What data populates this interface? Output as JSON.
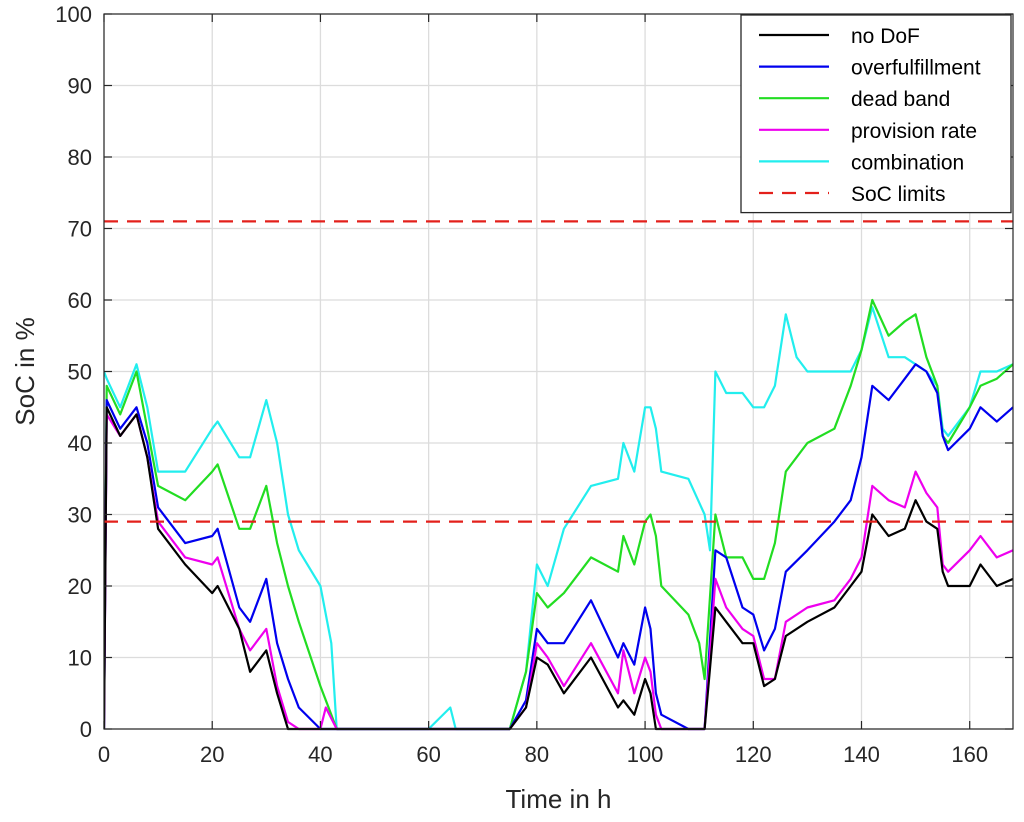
{
  "chart_data": {
    "type": "line",
    "title": "",
    "xlabel": "Time in h",
    "ylabel": "SoC in %",
    "xlim": [
      0,
      168
    ],
    "ylim": [
      0,
      100
    ],
    "xticks": [
      0,
      20,
      40,
      60,
      80,
      100,
      120,
      140,
      160
    ],
    "yticks": [
      0,
      10,
      20,
      30,
      40,
      50,
      60,
      70,
      80,
      90,
      100
    ],
    "grid": true,
    "legend": "top-right",
    "series": [
      {
        "name": "no DoF",
        "color": "#000000",
        "dashed": false,
        "x": [
          0,
          0.5,
          3,
          6,
          8,
          10,
          15,
          20,
          21,
          25,
          27,
          30,
          32,
          34,
          36,
          40,
          43,
          50,
          60,
          70,
          75,
          78,
          80,
          82,
          85,
          90,
          95,
          96,
          98,
          100,
          101,
          102,
          103,
          108,
          111,
          113,
          115,
          118,
          120,
          122,
          124,
          126,
          130,
          135,
          138,
          140,
          142,
          145,
          148,
          150,
          152,
          154,
          155,
          156,
          160,
          162,
          165,
          168
        ],
        "y": [
          0,
          45,
          41,
          44,
          38,
          28,
          23,
          19,
          20,
          14,
          8,
          11,
          5,
          0,
          0,
          0,
          0,
          0,
          0,
          0,
          0,
          3,
          10,
          9,
          5,
          10,
          3,
          4,
          2,
          7,
          5,
          0,
          0,
          0,
          0,
          17,
          15,
          12,
          12,
          6,
          7,
          13,
          15,
          17,
          20,
          22,
          30,
          27,
          28,
          32,
          29,
          28,
          22,
          20,
          20,
          23,
          20,
          21
        ]
      },
      {
        "name": "overfulfillment",
        "color": "#0000ee",
        "dashed": false,
        "x": [
          0,
          0.5,
          3,
          6,
          8,
          10,
          15,
          20,
          21,
          25,
          27,
          30,
          32,
          34,
          36,
          40,
          43,
          50,
          60,
          70,
          75,
          78,
          80,
          82,
          85,
          90,
          95,
          96,
          98,
          100,
          101,
          102,
          103,
          108,
          111,
          113,
          115,
          118,
          120,
          122,
          124,
          126,
          130,
          135,
          138,
          140,
          142,
          145,
          148,
          150,
          152,
          154,
          155,
          156,
          160,
          162,
          165,
          168
        ],
        "y": [
          0,
          46,
          42,
          45,
          40,
          31,
          26,
          27,
          28,
          17,
          15,
          21,
          12,
          7,
          3,
          0,
          0,
          0,
          0,
          0,
          0,
          4,
          14,
          12,
          12,
          18,
          10,
          12,
          9,
          17,
          14,
          5,
          2,
          0,
          0,
          25,
          24,
          17,
          16,
          11,
          14,
          22,
          25,
          29,
          32,
          38,
          48,
          46,
          49,
          51,
          50,
          47,
          41,
          39,
          42,
          45,
          43,
          45
        ]
      },
      {
        "name": "dead band",
        "color": "#22dd22",
        "dashed": false,
        "x": [
          0,
          0.5,
          3,
          6,
          8,
          10,
          15,
          20,
          21,
          25,
          27,
          30,
          32,
          34,
          36,
          40,
          42,
          43,
          50,
          60,
          70,
          75,
          78,
          80,
          82,
          85,
          90,
          95,
          96,
          98,
          100,
          101,
          102,
          103,
          108,
          110,
          111,
          113,
          115,
          118,
          120,
          122,
          124,
          126,
          130,
          135,
          138,
          140,
          142,
          145,
          148,
          150,
          152,
          154,
          155,
          156,
          160,
          162,
          165,
          168
        ],
        "y": [
          0,
          48,
          44,
          50,
          42,
          34,
          32,
          36,
          37,
          28,
          28,
          34,
          26,
          20,
          15,
          6,
          2,
          0,
          0,
          0,
          0,
          0,
          8,
          19,
          17,
          19,
          24,
          22,
          27,
          23,
          29,
          30,
          27,
          20,
          16,
          12,
          7,
          30,
          24,
          24,
          21,
          21,
          26,
          36,
          40,
          42,
          48,
          53,
          60,
          55,
          57,
          58,
          52,
          48,
          41,
          40,
          45,
          48,
          49,
          51
        ]
      },
      {
        "name": "provision rate",
        "color": "#ee00ee",
        "dashed": false,
        "x": [
          0,
          0.5,
          3,
          6,
          8,
          10,
          15,
          20,
          21,
          25,
          27,
          30,
          32,
          34,
          36,
          40,
          41,
          43,
          50,
          60,
          70,
          75,
          78,
          80,
          82,
          85,
          90,
          95,
          96,
          98,
          100,
          101,
          102,
          103,
          108,
          111,
          113,
          115,
          118,
          120,
          122,
          124,
          126,
          130,
          135,
          138,
          140,
          142,
          145,
          148,
          150,
          152,
          154,
          155,
          156,
          160,
          162,
          165,
          168
        ],
        "y": [
          0,
          44,
          41,
          44,
          38,
          29,
          24,
          23,
          24,
          14,
          11,
          14,
          6,
          1,
          0,
          0,
          3,
          0,
          0,
          0,
          0,
          0,
          3,
          12,
          10,
          6,
          12,
          5,
          11,
          5,
          10,
          8,
          2,
          0,
          0,
          0,
          21,
          17,
          14,
          13,
          7,
          7,
          15,
          17,
          18,
          21,
          24,
          34,
          32,
          31,
          36,
          33,
          31,
          23,
          22,
          25,
          27,
          24,
          25
        ]
      },
      {
        "name": "combination",
        "color": "#22eeee",
        "dashed": false,
        "x": [
          0,
          0.5,
          3,
          6,
          8,
          10,
          15,
          20,
          21,
          25,
          27,
          30,
          32,
          34,
          36,
          40,
          42,
          43,
          50,
          60,
          64,
          65,
          70,
          75,
          78,
          80,
          82,
          85,
          90,
          95,
          96,
          98,
          100,
          101,
          102,
          103,
          108,
          111,
          112,
          113,
          115,
          118,
          120,
          122,
          124,
          126,
          128,
          130,
          135,
          138,
          140,
          142,
          145,
          148,
          150,
          152,
          154,
          155,
          156,
          160,
          162,
          165,
          168
        ],
        "y": [
          50,
          49,
          45,
          51,
          45,
          36,
          36,
          42,
          43,
          38,
          38,
          46,
          40,
          30,
          25,
          20,
          12,
          0,
          0,
          0,
          3,
          0,
          0,
          0,
          8,
          23,
          20,
          28,
          34,
          35,
          40,
          36,
          45,
          45,
          42,
          36,
          35,
          30,
          25,
          50,
          47,
          47,
          45,
          45,
          48,
          58,
          52,
          50,
          50,
          50,
          53,
          59,
          52,
          52,
          51,
          50,
          48,
          42,
          41,
          45,
          50,
          50,
          51
        ]
      },
      {
        "name": "SoC limits",
        "color": "#e3201b",
        "dashed": true,
        "lines": [
          {
            "x": [
              0,
              168
            ],
            "y": [
              71,
              71
            ]
          },
          {
            "x": [
              0,
              168
            ],
            "y": [
              29,
              29
            ]
          }
        ]
      }
    ]
  }
}
